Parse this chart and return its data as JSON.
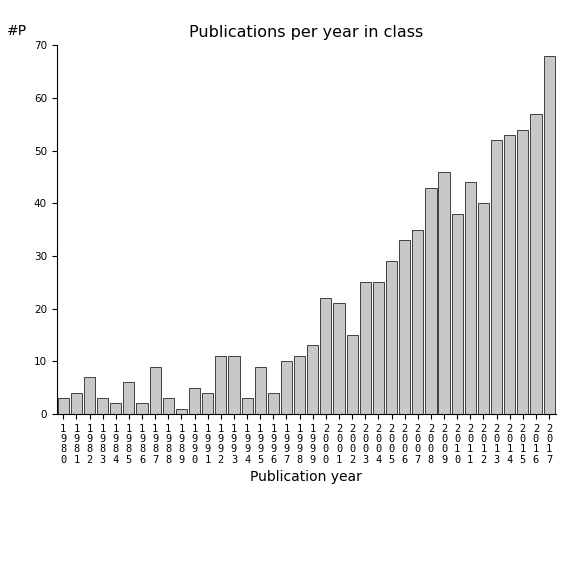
{
  "title": "Publications per year in class",
  "xlabel": "Publication year",
  "ylabel": "#P",
  "years": [
    1980,
    1981,
    1982,
    1983,
    1984,
    1985,
    1986,
    1987,
    1988,
    1989,
    1990,
    1991,
    1992,
    1993,
    1994,
    1995,
    1996,
    1997,
    1998,
    1999,
    2000,
    2001,
    2002,
    2003,
    2004,
    2005,
    2006,
    2007,
    2008,
    2009,
    2010,
    2011,
    2012,
    2013,
    2014,
    2015,
    2016,
    2017
  ],
  "values": [
    3,
    4,
    7,
    3,
    2,
    6,
    2,
    9,
    3,
    1,
    5,
    4,
    11,
    11,
    3,
    9,
    4,
    10,
    11,
    13,
    22,
    21,
    15,
    25,
    25,
    29,
    33,
    35,
    43,
    46,
    38,
    44,
    40,
    52,
    53,
    54,
    57,
    68
  ],
  "bar_color": "#c8c8c8",
  "bar_edge_color": "#000000",
  "ylim": [
    0,
    70
  ],
  "yticks": [
    0,
    10,
    20,
    30,
    40,
    50,
    60,
    70
  ],
  "bg_color": "#ffffff",
  "title_fontsize": 11.5,
  "label_fontsize": 10,
  "ylabel_fontsize": 10,
  "tick_fontsize": 7.5
}
